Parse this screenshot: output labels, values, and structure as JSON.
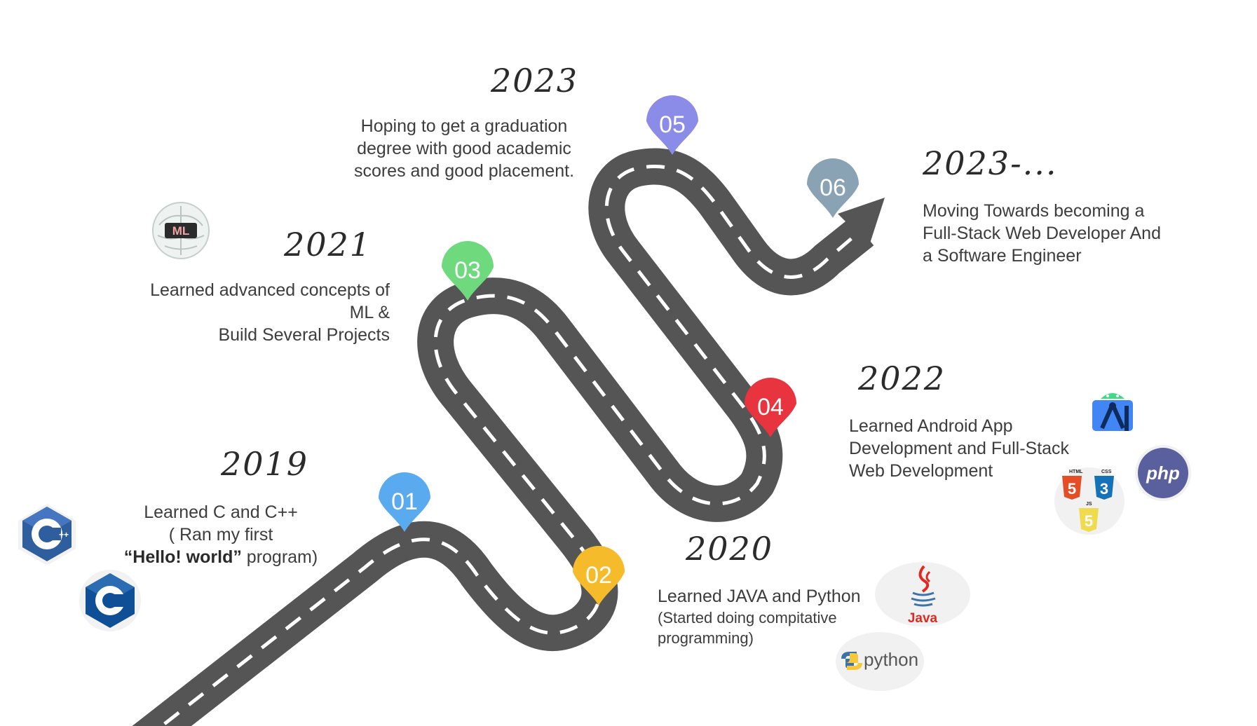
{
  "milestones": [
    {
      "year": "2019",
      "lines": [
        "Learned C and C++",
        "( Ran my first"
      ],
      "line3_bold": "“Hello! world”",
      "line3_rest": " program)"
    },
    {
      "year": "2020",
      "lines": [
        "Learned JAVA and Python"
      ],
      "small_lines": [
        "(Started doing compitative",
        "programming)"
      ]
    },
    {
      "year": "2021",
      "lines": [
        "Learned advanced concepts of",
        "ML &",
        "Build Several Projects"
      ]
    },
    {
      "year": "2022",
      "lines": [
        "Learned Android App",
        "Development and Full-Stack",
        "Web Development"
      ]
    },
    {
      "year": "2023",
      "lines": [
        "Hoping to get a graduation",
        "degree with good academic",
        "scores and good placement."
      ]
    },
    {
      "year": "2023-...",
      "lines": [
        "Moving Towards becoming a",
        "Full-Stack Web Developer And",
        "a Software Engineer"
      ]
    }
  ],
  "pins": [
    {
      "label": "01",
      "color": "#5aaaf0"
    },
    {
      "label": "02",
      "color": "#f6bb2a"
    },
    {
      "label": "03",
      "color": "#6ed97d"
    },
    {
      "label": "04",
      "color": "#e8343f"
    },
    {
      "label": "05",
      "color": "#8a8ce8"
    },
    {
      "label": "06",
      "color": "#8aa3b4"
    }
  ],
  "logos": {
    "ml": "ML",
    "java": "Java",
    "python": "python",
    "php": "php",
    "html": "HTML",
    "css": "CSS",
    "js": "JS"
  },
  "colors": {
    "road": "#555555",
    "dash": "#ffffff"
  }
}
